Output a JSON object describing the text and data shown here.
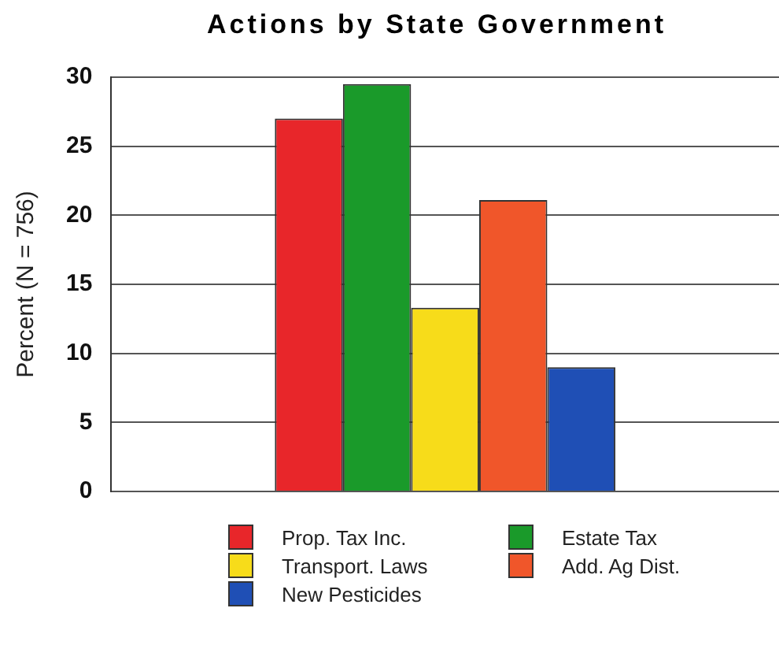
{
  "chart_data": {
    "type": "bar",
    "title": "Actions by State Government",
    "ylabel": "Percent (N = 756)",
    "categories": [
      null
    ],
    "series": [
      {
        "name": "Prop. Tax Inc.",
        "color": "#e8262a",
        "values": [
          27
        ]
      },
      {
        "name": "Estate Tax",
        "color": "#1a9a2a",
        "values": [
          29.5
        ]
      },
      {
        "name": "Transport. Laws",
        "color": "#f7dc1a",
        "values": [
          13.3
        ]
      },
      {
        "name": "Add. Ag Dist.",
        "color": "#f0562a",
        "values": [
          21.1
        ]
      },
      {
        "name": "New Pesticides",
        "color": "#1f4fb5",
        "values": [
          9
        ]
      }
    ],
    "ylim": [
      0,
      30
    ],
    "yticks": [
      0,
      5,
      10,
      15,
      20,
      25,
      30
    ],
    "grid": "y",
    "legend": "bottom"
  }
}
